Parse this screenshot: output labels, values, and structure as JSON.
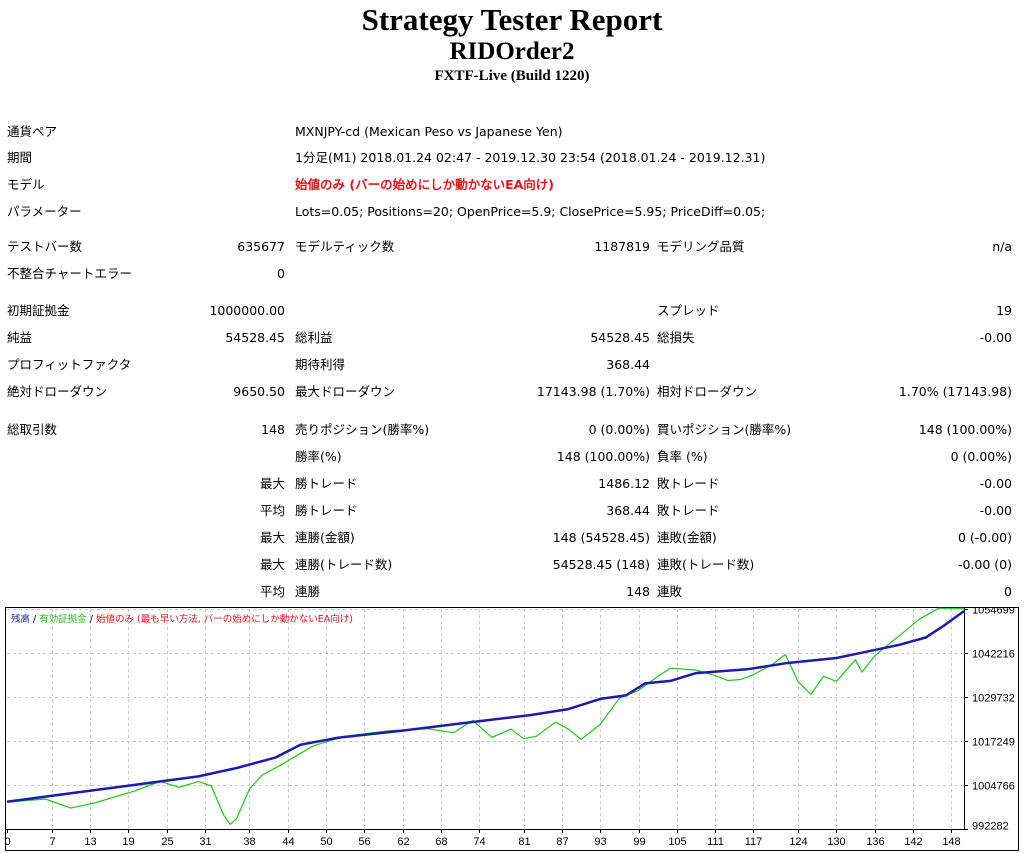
{
  "header": {
    "title": "Strategy Tester Report",
    "subtitle": "RIDOrder2",
    "server": "FXTF-Live (Build 1220)"
  },
  "info": {
    "pair_label": "通貨ペア",
    "pair_value": "MXNJPY-cd (Mexican Peso vs Japanese Yen)",
    "period_label": "期間",
    "period_value": "1分足(M1) 2018.01.24 02:47 - 2019.12.30 23:54 (2018.01.24 - 2019.12.31)",
    "model_label": "モデル",
    "model_value": "始値のみ (バーの始めにしか動かないEA向け)",
    "params_label": "パラメーター",
    "params_value": "Lots=0.05; Positions=20; OpenPrice=5.9; ClosePrice=5.95; PriceDiff=0.05;"
  },
  "stats": {
    "bars_label": "テストバー数",
    "bars_value": "635677",
    "ticks_label": "モデルティック数",
    "ticks_value": "1187819",
    "quality_label": "モデリング品質",
    "quality_value": "n/a",
    "mismatch_label": "不整合チャートエラー",
    "mismatch_value": "0",
    "deposit_label": "初期証拠金",
    "deposit_value": "1000000.00",
    "spread_label": "スプレッド",
    "spread_value": "19",
    "net_label": "純益",
    "net_value": "54528.45",
    "gross_profit_label": "総利益",
    "gross_profit_value": "54528.45",
    "gross_loss_label": "総損失",
    "gross_loss_value": "-0.00",
    "pf_label": "プロフィットファクタ",
    "expected_label": "期待利得",
    "expected_value": "368.44",
    "abs_dd_label": "絶対ドローダウン",
    "abs_dd_value": "9650.50",
    "max_dd_label": "最大ドローダウン",
    "max_dd_value": "17143.98 (1.70%)",
    "rel_dd_label": "相対ドローダウン",
    "rel_dd_value": "1.70% (17143.98)",
    "trades_label": "総取引数",
    "trades_value": "148",
    "short_label": "売りポジション(勝率%)",
    "short_value": "0 (0.00%)",
    "long_label": "買いポジション(勝率%)",
    "long_value": "148 (100.00%)",
    "win_rate_label": "勝率(%)",
    "win_rate_value": "148 (100.00%)",
    "loss_rate_label": "負率 (%)",
    "loss_rate_value": "0 (0.00%)",
    "max_label": "最大",
    "avg_label": "平均",
    "largest_win_label": "勝トレード",
    "largest_win_value": "1486.12",
    "largest_loss_label": "敗トレード",
    "largest_loss_value": "-0.00",
    "avg_win_label": "勝トレード",
    "avg_win_value": "368.44",
    "avg_loss_label": "敗トレード",
    "avg_loss_value": "-0.00",
    "max_cons_win_money_label": "連勝(金額)",
    "max_cons_win_money_value": "148 (54528.45)",
    "max_cons_loss_money_label": "連敗(金額)",
    "max_cons_loss_money_value": "0 (-0.00)",
    "max_cons_win_count_label": "連勝(トレード数)",
    "max_cons_win_count_value": "54528.45 (148)",
    "max_cons_loss_count_label": "連敗(トレード数)",
    "max_cons_loss_count_value": "-0.00 (0)",
    "avg_cons_win_label": "連勝",
    "avg_cons_win_value": "148",
    "avg_cons_loss_label": "連敗",
    "avg_cons_loss_value": "0"
  },
  "legend": {
    "balance": "残高",
    "sep1": " / ",
    "equity": "有効証拠金",
    "sep2": " / ",
    "model": "始値のみ (最も早い方法, バーの始めにしか動かないEA向け)"
  },
  "colors": {
    "balance": "#1c1ca8",
    "equity": "#22c41c",
    "model": "#e8141c",
    "grid": "#c8c8c8"
  },
  "chart_data": {
    "type": "line",
    "x_ticks": [
      "0",
      "7",
      "13",
      "19",
      "25",
      "31",
      "38",
      "44",
      "50",
      "56",
      "62",
      "68",
      "74",
      "81",
      "87",
      "93",
      "99",
      "105",
      "111",
      "117",
      "124",
      "130",
      "136",
      "142",
      "148"
    ],
    "y_ticks": [
      "992282",
      "1004766",
      "1017249",
      "1029732",
      "1042216",
      "1054699"
    ],
    "ylim": [
      992282,
      1054699
    ],
    "xlim": [
      0,
      150
    ],
    "series": [
      {
        "name": "残高",
        "points": [
          [
            0,
            1000000
          ],
          [
            10,
            1002400
          ],
          [
            20,
            1004800
          ],
          [
            30,
            1007200
          ],
          [
            36,
            1009600
          ],
          [
            42,
            1012500
          ],
          [
            46,
            1016200
          ],
          [
            52,
            1018200
          ],
          [
            62,
            1020200
          ],
          [
            72,
            1022400
          ],
          [
            82,
            1024600
          ],
          [
            88,
            1026300
          ],
          [
            93,
            1029200
          ],
          [
            97,
            1030200
          ],
          [
            100,
            1033600
          ],
          [
            104,
            1034300
          ],
          [
            108,
            1036500
          ],
          [
            116,
            1037600
          ],
          [
            122,
            1039300
          ],
          [
            130,
            1040800
          ],
          [
            134,
            1042300
          ],
          [
            140,
            1044600
          ],
          [
            144,
            1046600
          ],
          [
            147,
            1050200
          ],
          [
            150,
            1054100
          ]
        ]
      },
      {
        "name": "有効証拠金",
        "points": [
          [
            0,
            999900
          ],
          [
            6,
            1000800
          ],
          [
            10,
            998200
          ],
          [
            14,
            999800
          ],
          [
            20,
            1003100
          ],
          [
            24,
            1005800
          ],
          [
            27,
            1004100
          ],
          [
            30,
            1005800
          ],
          [
            32,
            1004500
          ],
          [
            34,
            996100
          ],
          [
            35,
            993600
          ],
          [
            36,
            995300
          ],
          [
            38,
            1003600
          ],
          [
            40,
            1007600
          ],
          [
            43,
            1010500
          ],
          [
            48,
            1015900
          ],
          [
            53,
            1018600
          ],
          [
            60,
            1020200
          ],
          [
            66,
            1020700
          ],
          [
            70,
            1019600
          ],
          [
            73,
            1023100
          ],
          [
            76,
            1018300
          ],
          [
            79,
            1020600
          ],
          [
            81,
            1017900
          ],
          [
            83,
            1018600
          ],
          [
            86,
            1022600
          ],
          [
            88,
            1020600
          ],
          [
            90,
            1017700
          ],
          [
            93,
            1022000
          ],
          [
            96,
            1029400
          ],
          [
            99,
            1031600
          ],
          [
            102,
            1035600
          ],
          [
            104,
            1037900
          ],
          [
            108,
            1037400
          ],
          [
            111,
            1035800
          ],
          [
            113,
            1034400
          ],
          [
            115,
            1034700
          ],
          [
            117,
            1036100
          ],
          [
            120,
            1039000
          ],
          [
            122,
            1041800
          ],
          [
            124,
            1034100
          ],
          [
            126,
            1030500
          ],
          [
            128,
            1035600
          ],
          [
            130,
            1034200
          ],
          [
            133,
            1040300
          ],
          [
            134,
            1036800
          ],
          [
            136,
            1041400
          ],
          [
            138,
            1044400
          ],
          [
            141,
            1048800
          ],
          [
            143,
            1051800
          ],
          [
            146,
            1054900
          ],
          [
            150,
            1054900
          ]
        ]
      }
    ]
  }
}
